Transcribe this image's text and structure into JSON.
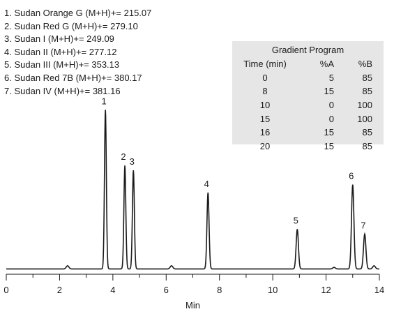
{
  "legend": [
    "1. Sudan Orange G (M+H)+= 215.07",
    "2. Sudan Red G (M+H)+= 279.10",
    "3. Sudan I (M+H)+= 249.09",
    "4. Sudan II (M+H)+= 277.12",
    "5. Sudan III (M+H)+= 353.13",
    "6. Sudan Red 7B (M+H)+= 380.17",
    "7. Sudan IV (M+H)+= 381.16"
  ],
  "gradient": {
    "title": "Gradient Program",
    "headers": [
      "Time (min)",
      "%A",
      "%B"
    ],
    "rows": [
      [
        "0",
        "5",
        "85"
      ],
      [
        "8",
        "15",
        "85"
      ],
      [
        "10",
        "0",
        "100"
      ],
      [
        "15",
        "0",
        "100"
      ],
      [
        "16",
        "15",
        "85"
      ],
      [
        "20",
        "15",
        "85"
      ]
    ]
  },
  "chart_data": {
    "type": "line",
    "xlabel": "Min",
    "ylabel": "",
    "xlim": [
      0,
      14
    ],
    "xticks": [
      0,
      2,
      4,
      6,
      8,
      10,
      12,
      14
    ],
    "grid": false,
    "baseline": 0.02,
    "peaks": [
      {
        "label": "1",
        "rt": 3.72,
        "height": 1.0
      },
      {
        "label": "2",
        "rt": 4.45,
        "height": 0.65
      },
      {
        "label": "3",
        "rt": 4.77,
        "height": 0.62
      },
      {
        "label": "4",
        "rt": 7.57,
        "height": 0.48
      },
      {
        "label": "5",
        "rt": 10.92,
        "height": 0.25
      },
      {
        "label": "6",
        "rt": 13.0,
        "height": 0.53
      },
      {
        "label": "7",
        "rt": 13.45,
        "height": 0.22
      }
    ],
    "minor_peaks": [
      {
        "rt": 2.3,
        "height": 0.02
      },
      {
        "rt": 6.2,
        "height": 0.02
      },
      {
        "rt": 12.3,
        "height": 0.01
      },
      {
        "rt": 13.8,
        "height": 0.02
      }
    ]
  }
}
